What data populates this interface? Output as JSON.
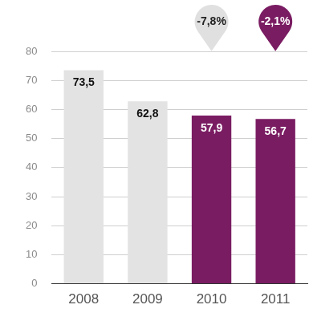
{
  "chart_data": {
    "type": "bar",
    "categories": [
      "2008",
      "2009",
      "2010",
      "2011"
    ],
    "values": [
      73.5,
      62.8,
      57.9,
      56.7
    ],
    "value_labels": [
      "73,5",
      "62,8",
      "57,9",
      "56,7"
    ],
    "colors": [
      "#e3e3e3",
      "#e3e3e3",
      "#7a1c62",
      "#7a1c62"
    ],
    "ylim": [
      0,
      80
    ],
    "yticks": [
      0,
      10,
      20,
      30,
      40,
      50,
      60,
      70,
      80
    ],
    "grid": true,
    "data_labels": true,
    "annotations": [
      {
        "category": "2010",
        "text": "-7,8%"
      },
      {
        "category": "2011",
        "text": "-2,1%"
      }
    ]
  }
}
